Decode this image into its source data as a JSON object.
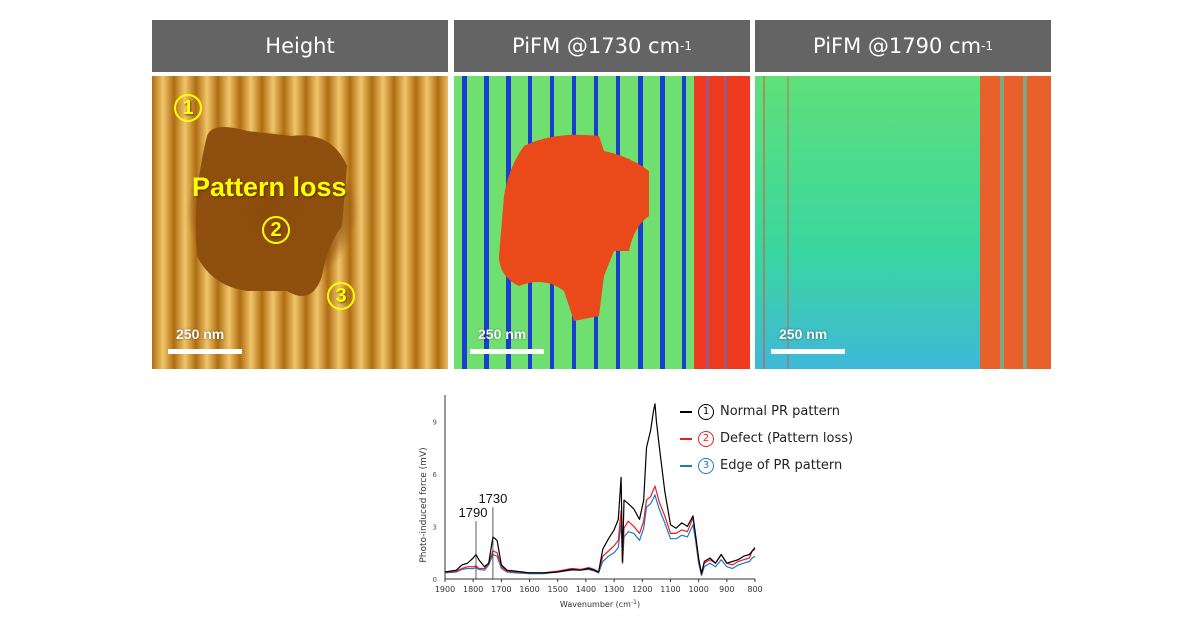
{
  "panels": [
    {
      "title": "Height",
      "title_sup": "",
      "scalebar": "250 nm"
    },
    {
      "title": "PiFM @1730 cm",
      "title_sup": "-1",
      "scalebar": "250 nm"
    },
    {
      "title": "PiFM @1790 cm",
      "title_sup": "-1",
      "scalebar": "250 nm"
    }
  ],
  "height_annotations": {
    "pattern_loss": "Pattern loss",
    "markers": [
      "1",
      "2",
      "3"
    ]
  },
  "chart_data": {
    "type": "line",
    "title": "",
    "xlabel": "Wavenumber (cm",
    "xlabel_sup": "-1",
    "xlabel_suffix": ")",
    "ylabel": "Photo-induced force (mV)",
    "xlim": [
      1900,
      800
    ],
    "ylim": [
      0,
      10.5
    ],
    "x_ticks": [
      1900,
      1800,
      1700,
      1600,
      1500,
      1400,
      1300,
      1200,
      1100,
      1000,
      900,
      800
    ],
    "y_ticks": [
      0,
      3,
      6,
      9
    ],
    "grid": false,
    "legend_position": "top-right",
    "annotations": [
      {
        "label": "1790",
        "x": 1790
      },
      {
        "label": "1730",
        "x": 1730
      }
    ],
    "x": [
      1900,
      1860,
      1840,
      1820,
      1800,
      1790,
      1780,
      1760,
      1745,
      1730,
      1715,
      1700,
      1680,
      1650,
      1600,
      1550,
      1500,
      1450,
      1420,
      1390,
      1370,
      1355,
      1340,
      1320,
      1300,
      1285,
      1275,
      1270,
      1265,
      1250,
      1230,
      1210,
      1195,
      1185,
      1170,
      1160,
      1155,
      1150,
      1140,
      1120,
      1100,
      1080,
      1060,
      1040,
      1020,
      1010,
      1000,
      990,
      980,
      960,
      940,
      920,
      900,
      880,
      860,
      840,
      820,
      810,
      800
    ],
    "series": [
      {
        "name": "Normal PR pattern",
        "marker": "1",
        "color": "#000000",
        "values": [
          0.4,
          0.5,
          0.8,
          0.9,
          1.2,
          1.4,
          1.1,
          0.7,
          0.9,
          2.4,
          2.2,
          0.8,
          0.5,
          0.45,
          0.35,
          0.35,
          0.4,
          0.55,
          0.5,
          0.6,
          0.5,
          0.4,
          1.7,
          2.3,
          2.8,
          3.4,
          5.8,
          1.0,
          4.5,
          4.3,
          4.0,
          3.4,
          4.5,
          7.5,
          8.5,
          9.6,
          10.0,
          9.0,
          7.6,
          5.0,
          3.1,
          2.9,
          3.2,
          3.0,
          3.6,
          2.4,
          1.2,
          0.3,
          1.0,
          1.2,
          0.9,
          1.4,
          0.9,
          1.0,
          1.1,
          1.3,
          1.4,
          1.6,
          1.8
        ]
      },
      {
        "name": "Defect (Pattern loss)",
        "marker": "2",
        "color": "#ee1c25",
        "values": [
          0.4,
          0.45,
          0.6,
          0.7,
          0.7,
          0.75,
          0.6,
          0.6,
          0.9,
          1.6,
          1.5,
          0.7,
          0.45,
          0.4,
          0.35,
          0.35,
          0.45,
          0.6,
          0.55,
          0.65,
          0.55,
          0.4,
          1.3,
          1.6,
          1.9,
          2.2,
          3.9,
          0.9,
          2.9,
          3.3,
          3.0,
          2.6,
          3.3,
          4.5,
          4.7,
          5.1,
          5.3,
          5.0,
          4.4,
          3.6,
          2.6,
          2.6,
          2.8,
          2.7,
          3.5,
          2.4,
          1.1,
          0.3,
          0.9,
          1.1,
          0.9,
          1.4,
          0.9,
          0.8,
          1.0,
          1.1,
          1.2,
          1.6,
          1.7
        ]
      },
      {
        "name": "Edge of PR pattern",
        "marker": "3",
        "color": "#1f78c8",
        "values": [
          0.35,
          0.4,
          0.55,
          0.6,
          0.6,
          0.65,
          0.55,
          0.5,
          0.8,
          1.4,
          1.3,
          0.6,
          0.4,
          0.35,
          0.3,
          0.3,
          0.4,
          0.5,
          0.5,
          0.55,
          0.45,
          0.35,
          1.0,
          1.3,
          1.5,
          1.8,
          3.2,
          0.9,
          2.4,
          2.7,
          2.6,
          2.2,
          2.9,
          4.1,
          4.3,
          4.6,
          4.8,
          4.5,
          4.0,
          3.2,
          2.3,
          2.3,
          2.5,
          2.4,
          3.1,
          2.1,
          0.9,
          0.2,
          0.7,
          0.9,
          0.7,
          1.1,
          0.7,
          0.6,
          0.8,
          0.9,
          1.0,
          1.2,
          1.3
        ]
      }
    ]
  }
}
